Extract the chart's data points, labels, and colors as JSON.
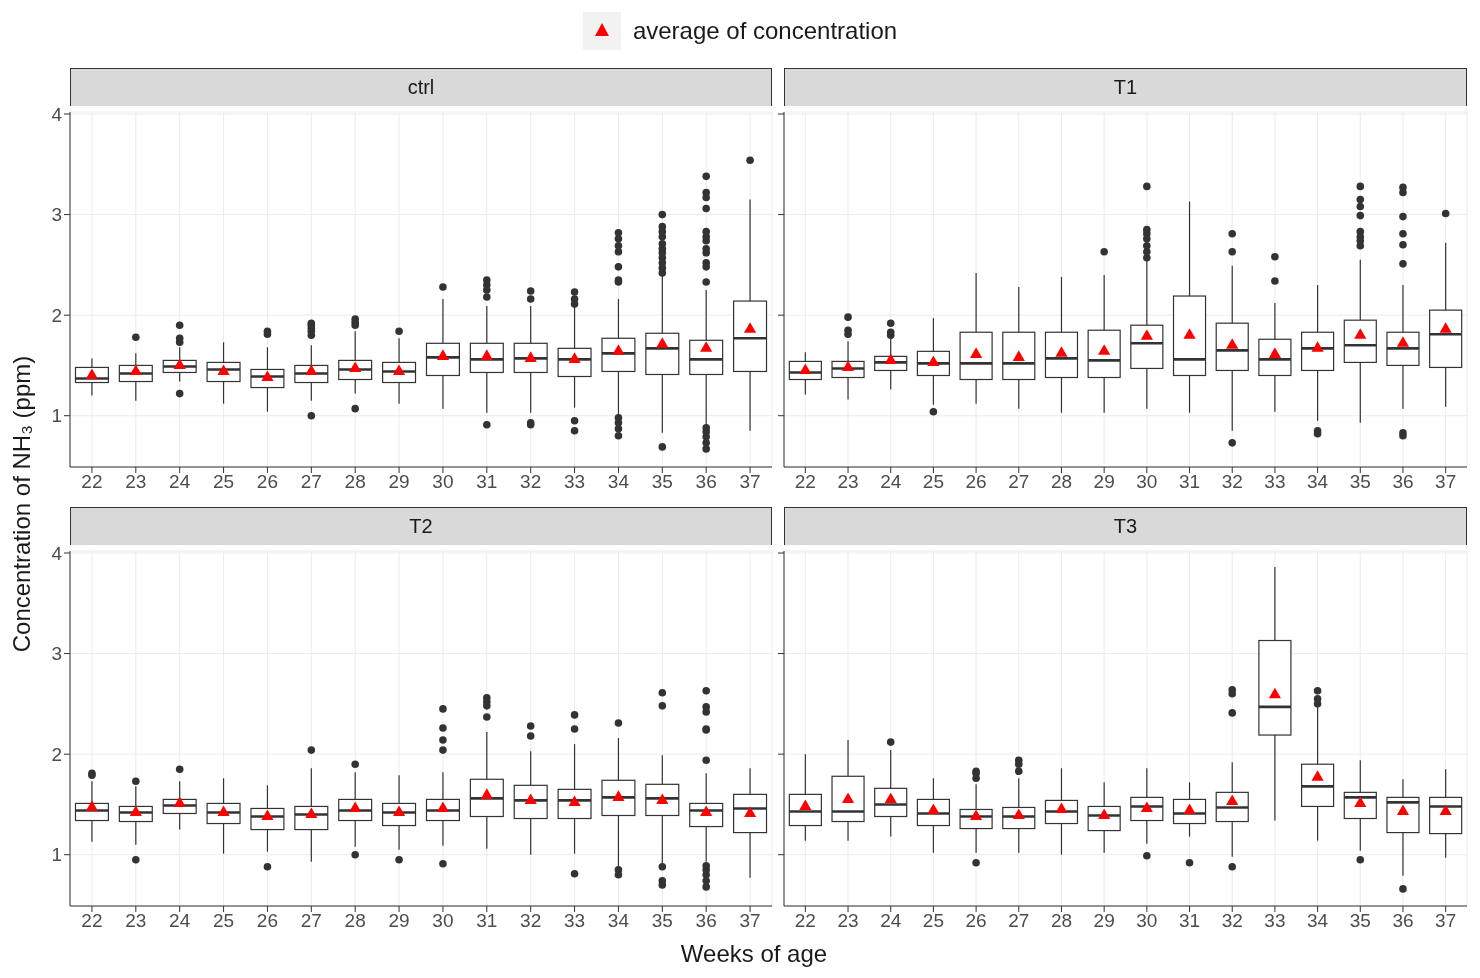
{
  "chart_data": [
    {
      "type": "box",
      "title": "ctrl",
      "ylabel": "Concentration of NH₃ (ppm)",
      "legend": "top",
      "grid": true,
      "ylim": [
        0.49,
        4.02
      ],
      "yticks": [
        1,
        2,
        3,
        4
      ],
      "categories": [
        "22",
        "23",
        "24",
        "25",
        "26",
        "27",
        "28",
        "29",
        "30",
        "31",
        "32",
        "33",
        "34",
        "35",
        "36",
        "37"
      ],
      "boxes": [
        {
          "low": 1.2,
          "q1": 1.33,
          "median": 1.37,
          "q3": 1.48,
          "high": 1.57
        },
        {
          "low": 1.15,
          "q1": 1.34,
          "median": 1.42,
          "q3": 1.5,
          "high": 1.62,
          "outliers": [
            1.78
          ]
        },
        {
          "low": 1.34,
          "q1": 1.43,
          "median": 1.49,
          "q3": 1.55,
          "high": 1.68,
          "outliers": [
            1.9,
            1.77,
            1.73,
            1.22
          ]
        },
        {
          "low": 1.12,
          "q1": 1.34,
          "median": 1.46,
          "q3": 1.53,
          "high": 1.73
        },
        {
          "low": 1.04,
          "q1": 1.28,
          "median": 1.39,
          "q3": 1.46,
          "high": 1.68,
          "outliers": [
            1.84,
            1.81
          ]
        },
        {
          "low": 1.15,
          "q1": 1.33,
          "median": 1.42,
          "q3": 1.5,
          "high": 1.7,
          "outliers": [
            1.92,
            1.9,
            1.87,
            1.84,
            1.8,
            1.0
          ]
        },
        {
          "low": 1.22,
          "q1": 1.36,
          "median": 1.46,
          "q3": 1.55,
          "high": 1.84,
          "outliers": [
            1.96,
            1.93,
            1.9,
            1.07
          ]
        },
        {
          "low": 1.12,
          "q1": 1.33,
          "median": 1.44,
          "q3": 1.53,
          "high": 1.77,
          "outliers": [
            1.84
          ]
        },
        {
          "low": 1.07,
          "q1": 1.4,
          "median": 1.58,
          "q3": 1.72,
          "high": 2.16,
          "outliers": [
            2.28
          ]
        },
        {
          "low": 1.03,
          "q1": 1.43,
          "median": 1.56,
          "q3": 1.72,
          "high": 2.09,
          "outliers": [
            2.35,
            2.3,
            2.25,
            2.18,
            0.91
          ]
        },
        {
          "low": 1.03,
          "q1": 1.43,
          "median": 1.57,
          "q3": 1.72,
          "high": 2.09,
          "outliers": [
            2.24,
            2.16,
            0.93,
            0.91
          ]
        },
        {
          "low": 1.08,
          "q1": 1.39,
          "median": 1.56,
          "q3": 1.67,
          "high": 2.09,
          "outliers": [
            2.23,
            2.16,
            2.11,
            0.95,
            0.85
          ]
        },
        {
          "low": 1.0,
          "q1": 1.44,
          "median": 1.62,
          "q3": 1.77,
          "high": 2.16,
          "outliers": [
            2.82,
            2.76,
            2.69,
            2.63,
            2.48,
            2.35,
            2.33,
            0.98,
            0.93,
            0.87,
            0.8
          ]
        },
        {
          "low": 0.83,
          "q1": 1.41,
          "median": 1.67,
          "q3": 1.82,
          "high": 2.4,
          "outliers": [
            3.0,
            2.88,
            2.83,
            2.78,
            2.71,
            2.66,
            2.62,
            2.57,
            2.52,
            2.47,
            2.42,
            0.69
          ]
        },
        {
          "low": 0.91,
          "q1": 1.41,
          "median": 1.56,
          "q3": 1.75,
          "high": 2.25,
          "outliers": [
            3.38,
            3.22,
            3.17,
            3.06,
            2.83,
            2.78,
            2.74,
            2.66,
            2.62,
            2.52,
            2.48,
            2.33,
            0.88,
            0.84,
            0.79,
            0.73,
            0.67
          ]
        },
        {
          "low": 0.85,
          "q1": 1.44,
          "median": 1.77,
          "q3": 2.14,
          "high": 3.15,
          "outliers": [
            3.54
          ]
        }
      ],
      "series": [
        {
          "type": "scatter",
          "name": "average of concentration",
          "color": "#ff0000",
          "marker": "triangle",
          "values": [
            1.4,
            1.44,
            1.5,
            1.44,
            1.38,
            1.44,
            1.47,
            1.44,
            1.59,
            1.59,
            1.57,
            1.56,
            1.64,
            1.71,
            1.67,
            1.86
          ]
        }
      ]
    },
    {
      "type": "box",
      "title": "T1",
      "grid": true,
      "tick_labels": "x",
      "ylim": [
        0.49,
        4.02
      ],
      "yticks": [
        {
          "value": 1,
          "label": null
        },
        {
          "value": 2,
          "label": null
        },
        {
          "value": 3,
          "label": null
        },
        {
          "value": 4,
          "label": null
        }
      ],
      "categories": [
        "22",
        "23",
        "24",
        "25",
        "26",
        "27",
        "28",
        "29",
        "30",
        "31",
        "32",
        "33",
        "34",
        "35",
        "36",
        "37"
      ],
      "boxes": [
        {
          "low": 1.21,
          "q1": 1.36,
          "median": 1.43,
          "q3": 1.54,
          "high": 1.63
        },
        {
          "low": 1.16,
          "q1": 1.38,
          "median": 1.47,
          "q3": 1.54,
          "high": 1.74,
          "outliers": [
            1.98,
            1.85,
            1.81
          ]
        },
        {
          "low": 1.26,
          "q1": 1.45,
          "median": 1.53,
          "q3": 1.59,
          "high": 1.78,
          "outliers": [
            1.92,
            1.83,
            1.8
          ]
        },
        {
          "low": 1.11,
          "q1": 1.4,
          "median": 1.52,
          "q3": 1.64,
          "high": 1.97,
          "outliers": [
            1.04
          ]
        },
        {
          "low": 1.12,
          "q1": 1.36,
          "median": 1.52,
          "q3": 1.83,
          "high": 2.42
        },
        {
          "low": 1.07,
          "q1": 1.36,
          "median": 1.52,
          "q3": 1.83,
          "high": 2.28
        },
        {
          "low": 1.03,
          "q1": 1.38,
          "median": 1.57,
          "q3": 1.83,
          "high": 2.38
        },
        {
          "low": 1.03,
          "q1": 1.38,
          "median": 1.55,
          "q3": 1.85,
          "high": 2.4,
          "outliers": [
            2.63
          ]
        },
        {
          "low": 1.07,
          "q1": 1.47,
          "median": 1.72,
          "q3": 1.9,
          "high": 2.55,
          "outliers": [
            3.28,
            2.85,
            2.81,
            2.76,
            2.69,
            2.63,
            2.57
          ]
        },
        {
          "low": 1.03,
          "q1": 1.4,
          "median": 1.56,
          "q3": 2.19,
          "high": 3.13
        },
        {
          "low": 0.85,
          "q1": 1.45,
          "median": 1.65,
          "q3": 1.92,
          "high": 2.49,
          "outliers": [
            2.81,
            2.63,
            0.73
          ]
        },
        {
          "low": 1.04,
          "q1": 1.4,
          "median": 1.56,
          "q3": 1.76,
          "high": 2.12,
          "outliers": [
            2.58,
            2.34
          ]
        },
        {
          "low": 0.95,
          "q1": 1.45,
          "median": 1.67,
          "q3": 1.83,
          "high": 2.3,
          "outliers": [
            0.85,
            0.82
          ]
        },
        {
          "low": 0.93,
          "q1": 1.53,
          "median": 1.7,
          "q3": 1.95,
          "high": 2.55,
          "outliers": [
            3.28,
            3.15,
            3.08,
            2.99,
            2.83,
            2.78,
            2.74,
            2.69
          ]
        },
        {
          "low": 1.07,
          "q1": 1.5,
          "median": 1.67,
          "q3": 1.83,
          "high": 2.3,
          "outliers": [
            3.27,
            3.22,
            2.98,
            2.81,
            2.7,
            2.51,
            0.83,
            0.8
          ]
        },
        {
          "low": 1.09,
          "q1": 1.48,
          "median": 1.81,
          "q3": 2.05,
          "high": 2.72,
          "outliers": [
            3.01
          ]
        }
      ],
      "series": [
        {
          "type": "scatter",
          "color": "#ff0000",
          "marker": "triangle",
          "values": [
            1.45,
            1.48,
            1.55,
            1.53,
            1.61,
            1.58,
            1.62,
            1.64,
            1.79,
            1.8,
            1.7,
            1.61,
            1.67,
            1.8,
            1.72,
            1.86
          ]
        }
      ]
    },
    {
      "type": "box",
      "title": "T2",
      "xlabel": "Weeks of age",
      "grid": true,
      "ylim": [
        0.49,
        4.02
      ],
      "yticks": [
        1,
        2,
        3,
        4
      ],
      "categories": [
        "22",
        "23",
        "24",
        "25",
        "26",
        "27",
        "28",
        "29",
        "30",
        "31",
        "32",
        "33",
        "34",
        "35",
        "36",
        "37"
      ],
      "boxes": [
        {
          "low": 1.13,
          "q1": 1.34,
          "median": 1.44,
          "q3": 1.51,
          "high": 1.73,
          "outliers": [
            1.81,
            1.79
          ]
        },
        {
          "low": 1.1,
          "q1": 1.33,
          "median": 1.42,
          "q3": 1.48,
          "high": 1.68,
          "outliers": [
            1.73,
            0.95
          ]
        },
        {
          "low": 1.25,
          "q1": 1.41,
          "median": 1.49,
          "q3": 1.55,
          "high": 1.73,
          "outliers": [
            1.85
          ]
        },
        {
          "low": 1.01,
          "q1": 1.31,
          "median": 1.42,
          "q3": 1.51,
          "high": 1.76
        },
        {
          "low": 1.03,
          "q1": 1.25,
          "median": 1.38,
          "q3": 1.46,
          "high": 1.69,
          "outliers": [
            0.88
          ]
        },
        {
          "low": 0.93,
          "q1": 1.25,
          "median": 1.4,
          "q3": 1.48,
          "high": 1.86,
          "outliers": [
            2.04
          ]
        },
        {
          "low": 1.08,
          "q1": 1.34,
          "median": 1.44,
          "q3": 1.55,
          "high": 1.82,
          "outliers": [
            1.9,
            1.0
          ]
        },
        {
          "low": 1.05,
          "q1": 1.29,
          "median": 1.42,
          "q3": 1.51,
          "high": 1.79,
          "outliers": [
            0.95
          ]
        },
        {
          "low": 1.09,
          "q1": 1.34,
          "median": 1.44,
          "q3": 1.55,
          "high": 1.82,
          "outliers": [
            2.45,
            2.26,
            2.14,
            2.04,
            0.91
          ]
        },
        {
          "low": 1.06,
          "q1": 1.38,
          "median": 1.56,
          "q3": 1.75,
          "high": 2.22,
          "outliers": [
            2.56,
            2.52,
            2.48,
            2.37
          ]
        },
        {
          "low": 1.0,
          "q1": 1.36,
          "median": 1.54,
          "q3": 1.69,
          "high": 2.03,
          "outliers": [
            2.28,
            2.18
          ]
        },
        {
          "low": 1.01,
          "q1": 1.36,
          "median": 1.54,
          "q3": 1.65,
          "high": 2.1,
          "outliers": [
            2.39,
            2.25,
            0.81
          ]
        },
        {
          "low": 0.88,
          "q1": 1.39,
          "median": 1.57,
          "q3": 1.74,
          "high": 2.16,
          "outliers": [
            2.31,
            0.85,
            0.8
          ]
        },
        {
          "low": 0.91,
          "q1": 1.39,
          "median": 1.56,
          "q3": 1.7,
          "high": 1.99,
          "outliers": [
            2.61,
            2.48,
            0.88,
            0.74,
            0.7
          ]
        },
        {
          "low": 0.93,
          "q1": 1.28,
          "median": 1.44,
          "q3": 1.51,
          "high": 1.81,
          "outliers": [
            2.63,
            2.47,
            2.42,
            2.25,
            2.24,
            1.94,
            0.89,
            0.85,
            0.8,
            0.74,
            0.68
          ]
        },
        {
          "low": 0.77,
          "q1": 1.22,
          "median": 1.46,
          "q3": 1.6,
          "high": 1.86
        }
      ],
      "series": [
        {
          "type": "scatter",
          "color": "#ff0000",
          "marker": "triangle",
          "values": [
            1.47,
            1.42,
            1.51,
            1.42,
            1.38,
            1.4,
            1.46,
            1.42,
            1.46,
            1.59,
            1.54,
            1.52,
            1.57,
            1.54,
            1.42,
            1.41
          ]
        }
      ]
    },
    {
      "type": "box",
      "title": "T3",
      "grid": true,
      "tick_labels": "x",
      "ylim": [
        0.49,
        4.02
      ],
      "yticks": [
        {
          "value": 1,
          "label": null
        },
        {
          "value": 2,
          "label": null
        },
        {
          "value": 3,
          "label": null
        },
        {
          "value": 4,
          "label": null
        }
      ],
      "categories": [
        "22",
        "23",
        "24",
        "25",
        "26",
        "27",
        "28",
        "29",
        "30",
        "31",
        "32",
        "33",
        "34",
        "35",
        "36",
        "37"
      ],
      "boxes": [
        {
          "low": 1.14,
          "q1": 1.29,
          "median": 1.43,
          "q3": 1.6,
          "high": 2.0
        },
        {
          "low": 1.14,
          "q1": 1.33,
          "median": 1.43,
          "q3": 1.78,
          "high": 2.14
        },
        {
          "low": 1.18,
          "q1": 1.38,
          "median": 1.5,
          "q3": 1.66,
          "high": 2.04,
          "outliers": [
            2.12
          ]
        },
        {
          "low": 1.02,
          "q1": 1.29,
          "median": 1.41,
          "q3": 1.55,
          "high": 1.76
        },
        {
          "low": 1.02,
          "q1": 1.26,
          "median": 1.38,
          "q3": 1.45,
          "high": 1.7,
          "outliers": [
            1.83,
            1.81,
            1.76,
            0.92
          ]
        },
        {
          "low": 1.02,
          "q1": 1.26,
          "median": 1.38,
          "q3": 1.47,
          "high": 1.76,
          "outliers": [
            1.94,
            1.9,
            1.83
          ]
        },
        {
          "low": 1.0,
          "q1": 1.31,
          "median": 1.43,
          "q3": 1.54,
          "high": 1.86
        },
        {
          "low": 1.02,
          "q1": 1.24,
          "median": 1.39,
          "q3": 1.48,
          "high": 1.72
        },
        {
          "low": 1.11,
          "q1": 1.34,
          "median": 1.48,
          "q3": 1.57,
          "high": 1.86,
          "outliers": [
            0.99
          ]
        },
        {
          "low": 1.18,
          "q1": 1.31,
          "median": 1.41,
          "q3": 1.55,
          "high": 1.72,
          "outliers": [
            0.92
          ]
        },
        {
          "low": 0.98,
          "q1": 1.33,
          "median": 1.47,
          "q3": 1.62,
          "high": 1.92,
          "outliers": [
            2.64,
            2.6,
            2.41,
            0.88
          ]
        },
        {
          "low": 1.34,
          "q1": 2.19,
          "median": 2.47,
          "q3": 3.13,
          "high": 3.86
        },
        {
          "low": 1.14,
          "q1": 1.48,
          "median": 1.68,
          "q3": 1.9,
          "high": 2.48,
          "outliers": [
            2.63,
            2.55,
            2.5
          ]
        },
        {
          "low": 1.04,
          "q1": 1.36,
          "median": 1.57,
          "q3": 1.62,
          "high": 1.94,
          "outliers": [
            0.95
          ]
        },
        {
          "low": 0.79,
          "q1": 1.22,
          "median": 1.52,
          "q3": 1.57,
          "high": 1.75,
          "outliers": [
            0.66
          ]
        },
        {
          "low": 0.97,
          "q1": 1.21,
          "median": 1.48,
          "q3": 1.57,
          "high": 1.85
        }
      ],
      "series": [
        {
          "type": "scatter",
          "color": "#ff0000",
          "marker": "triangle",
          "values": [
            1.48,
            1.55,
            1.55,
            1.44,
            1.38,
            1.39,
            1.45,
            1.39,
            1.46,
            1.44,
            1.53,
            2.59,
            1.77,
            1.51,
            1.43,
            1.43
          ]
        }
      ]
    }
  ]
}
